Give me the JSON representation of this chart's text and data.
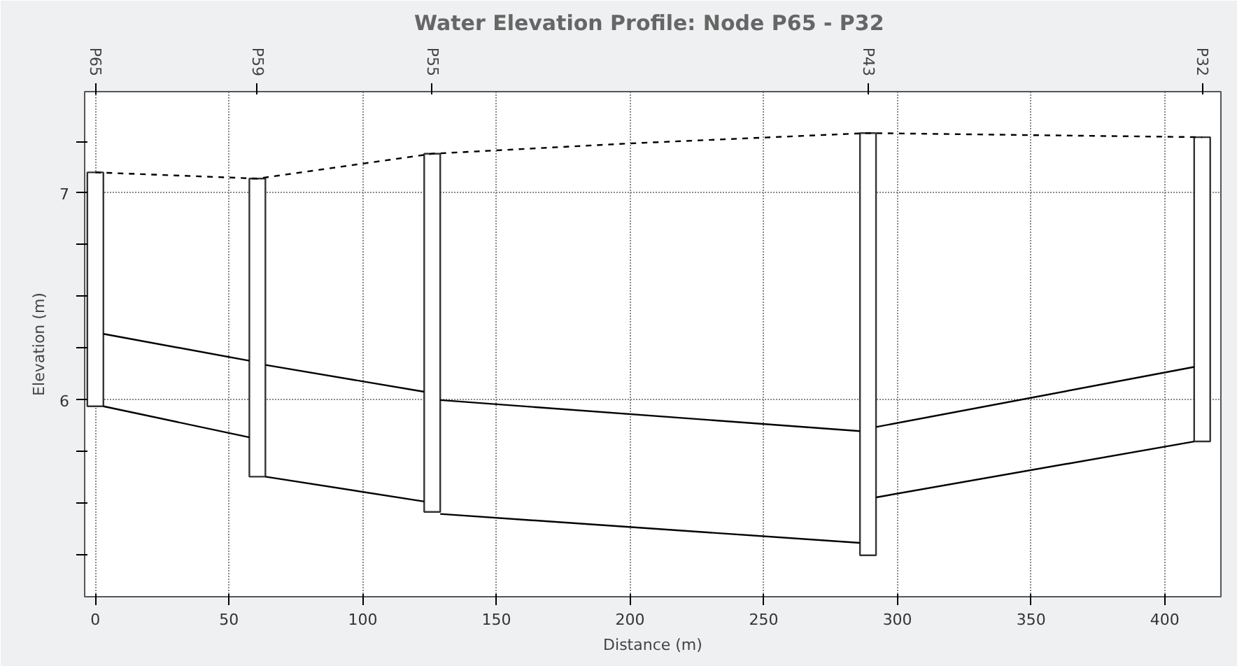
{
  "chart_data": {
    "type": "line",
    "title": "Water Elevation Profile:  Node P65 - P32",
    "xlabel": "Distance (m)",
    "ylabel": "Elevation (m)",
    "xlim": [
      -4,
      421
    ],
    "xticks": [
      0,
      50,
      100,
      150,
      200,
      250,
      300,
      350,
      400
    ],
    "ylim": [
      5.05,
      7.49
    ],
    "yticks": [
      {
        "value": 5.25,
        "label": null
      },
      {
        "value": 5.5,
        "label": null
      },
      {
        "value": 5.75,
        "label": null
      },
      {
        "value": 6,
        "label": "6"
      },
      {
        "value": 6.25,
        "label": null
      },
      {
        "value": 6.5,
        "label": null
      },
      {
        "value": 6.75,
        "label": null
      },
      {
        "value": 7,
        "label": "7"
      },
      {
        "value": 7.25,
        "label": null
      }
    ],
    "annotations": [
      {
        "text": "P65",
        "x": 0
      },
      {
        "text": "P59",
        "x": 60.6
      },
      {
        "text": "P55",
        "x": 126
      },
      {
        "text": "P43",
        "x": 289
      },
      {
        "text": "P32",
        "x": 414
      }
    ],
    "grid": true,
    "series": [
      {
        "type": "bar",
        "color": "#ffffff",
        "x": [
          0,
          60.6,
          126,
          289,
          414
        ],
        "base": [
          5.97,
          5.63,
          5.46,
          5.25,
          5.8
        ],
        "values": [
          1.13,
          1.44,
          1.73,
          2.04,
          1.47
        ]
      },
      {
        "color": "#000000",
        "line_style": "solid",
        "x": [
          3,
          57.6
        ],
        "values": [
          6.32,
          6.19
        ]
      },
      {
        "color": "#000000",
        "line_style": "solid",
        "x": [
          3,
          57.6
        ],
        "values": [
          5.97,
          5.82
        ]
      },
      {
        "color": "#000000",
        "line_style": "solid",
        "x": [
          63.6,
          123
        ],
        "values": [
          6.17,
          6.04
        ]
      },
      {
        "color": "#000000",
        "line_style": "solid",
        "x": [
          63.6,
          123
        ],
        "values": [
          5.63,
          5.51
        ]
      },
      {
        "color": "#000000",
        "line_style": "solid",
        "x": [
          129,
          286
        ],
        "values": [
          6.0,
          5.85
        ]
      },
      {
        "color": "#000000",
        "line_style": "solid",
        "x": [
          129,
          286
        ],
        "values": [
          5.45,
          5.31
        ]
      },
      {
        "color": "#000000",
        "line_style": "solid",
        "x": [
          292,
          411
        ],
        "values": [
          5.87,
          6.16
        ]
      },
      {
        "color": "#000000",
        "line_style": "solid",
        "x": [
          292,
          411
        ],
        "values": [
          5.53,
          5.8
        ]
      },
      {
        "color": "#000000",
        "line_style": "dashed",
        "x": [
          0,
          60.6,
          126,
          200,
          289,
          350,
          414
        ],
        "values": [
          7.1,
          7.07,
          7.19,
          7.24,
          7.29,
          7.28,
          7.27
        ]
      }
    ]
  }
}
